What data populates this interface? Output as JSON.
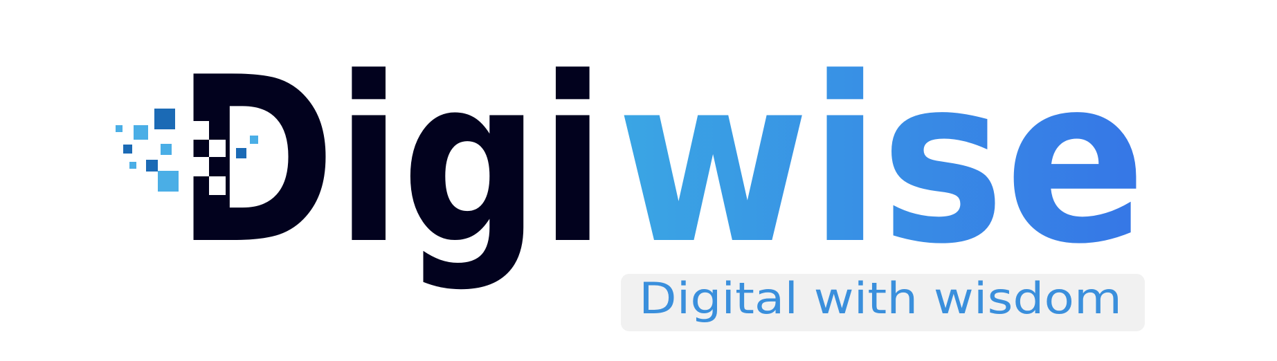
{
  "logo": {
    "dark_part": "Digi",
    "light_part": "wise",
    "tagline": "Digital with wisdom"
  }
}
